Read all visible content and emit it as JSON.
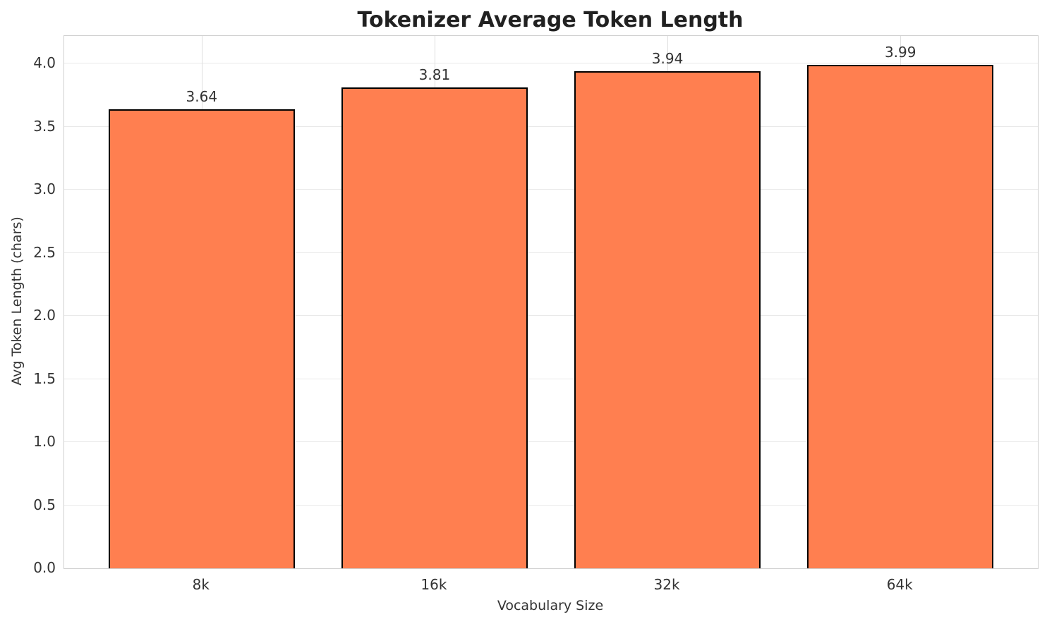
{
  "chart_data": {
    "type": "bar",
    "title": "Tokenizer Average Token Length",
    "xlabel": "Vocabulary Size",
    "ylabel": "Avg Token Length (chars)",
    "categories": [
      "8k",
      "16k",
      "32k",
      "64k"
    ],
    "values": [
      3.64,
      3.81,
      3.94,
      3.99
    ],
    "bar_value_labels": [
      "3.64",
      "3.81",
      "3.94",
      "3.99"
    ],
    "ylim": [
      0,
      4.22
    ],
    "ytick_labels": [
      "0.0",
      "0.5",
      "1.0",
      "1.5",
      "2.0",
      "2.5",
      "3.0",
      "3.5",
      "4.0"
    ],
    "grid": true,
    "legend": "none",
    "colors": {
      "bar_fill": "#FF7F50",
      "bar_edge": "#000000",
      "grid_h": "#e9e9e9",
      "grid_v": "#dedede",
      "spine": "#cfcfcf",
      "tick_text": "#333333",
      "title_text": "#212121"
    }
  }
}
